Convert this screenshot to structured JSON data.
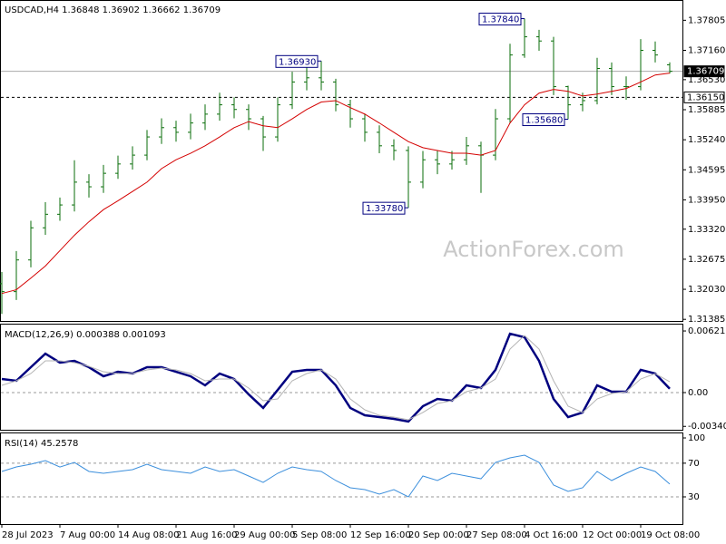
{
  "chart_data": [
    {
      "type": "ohlc",
      "title": "USDCAD,H4  1.36848 1.36902 1.36662 1.36709",
      "watermark": "ActionForex.com",
      "categories": [
        "28 Jul 2023",
        null,
        null,
        null,
        "7 Aug 00:00",
        null,
        null,
        null,
        "14 Aug 08:00",
        null,
        null,
        null,
        "21 Aug 16:00",
        null,
        null,
        null,
        "29 Aug 00:00",
        null,
        null,
        null,
        "5 Sep 08:00",
        null,
        null,
        null,
        "12 Sep 16:00",
        null,
        null,
        null,
        "20 Sep 00:00",
        null,
        null,
        null,
        "27 Sep 08:00",
        null,
        null,
        null,
        "4 Oct 16:00",
        null,
        null,
        null,
        "12 Oct 00:00",
        null,
        null,
        null,
        "19 Oct 08:00",
        null,
        null
      ],
      "open": [
        1.3215,
        1.3198,
        1.3266,
        1.3335,
        1.3364,
        1.3384,
        1.3433,
        1.3423,
        1.3452,
        1.3472,
        1.3491,
        1.353,
        1.355,
        1.354,
        1.356,
        1.3579,
        1.3599,
        1.3589,
        1.3569,
        1.353,
        1.3599,
        1.3648,
        1.3657,
        1.3648,
        1.3599,
        1.3569,
        1.354,
        1.3511,
        1.3501,
        1.3433,
        1.3481,
        1.3472,
        1.3481,
        1.3511,
        1.3491,
        1.3569,
        1.3706,
        1.3745,
        1.3736,
        1.3638,
        1.3599,
        1.3608,
        1.3677,
        1.3638,
        1.3638,
        1.3716,
        1.36848
      ],
      "high": [
        1.324,
        1.3285,
        1.335,
        1.339,
        1.34,
        1.348,
        1.345,
        1.347,
        1.349,
        1.351,
        1.3545,
        1.357,
        1.3565,
        1.358,
        1.36,
        1.3625,
        1.3615,
        1.36,
        1.3575,
        1.3615,
        1.367,
        1.3685,
        1.3693,
        1.3655,
        1.361,
        1.358,
        1.3555,
        1.3525,
        1.351,
        1.35,
        1.35,
        1.35,
        1.353,
        1.352,
        1.359,
        1.373,
        1.3784,
        1.376,
        1.3745,
        1.364,
        1.3625,
        1.37,
        1.369,
        1.366,
        1.374,
        1.3735,
        1.36902
      ],
      "low": [
        1.315,
        1.318,
        1.325,
        1.332,
        1.335,
        1.337,
        1.34,
        1.341,
        1.344,
        1.346,
        1.348,
        1.3515,
        1.352,
        1.3525,
        1.3545,
        1.3565,
        1.357,
        1.3545,
        1.35,
        1.352,
        1.359,
        1.363,
        1.363,
        1.3585,
        1.355,
        1.352,
        1.3495,
        1.348,
        1.3378,
        1.342,
        1.345,
        1.346,
        1.347,
        1.341,
        1.348,
        1.356,
        1.37,
        1.3715,
        1.362,
        1.3568,
        1.3585,
        1.36,
        1.362,
        1.361,
        1.363,
        1.369,
        1.36662
      ],
      "close": [
        1.3198,
        1.3266,
        1.3335,
        1.3364,
        1.3384,
        1.3433,
        1.3423,
        1.3452,
        1.3472,
        1.3491,
        1.353,
        1.355,
        1.354,
        1.356,
        1.3579,
        1.3599,
        1.3589,
        1.3569,
        1.353,
        1.3599,
        1.3648,
        1.3657,
        1.3648,
        1.3599,
        1.3569,
        1.354,
        1.3511,
        1.3501,
        1.3433,
        1.3481,
        1.3472,
        1.3481,
        1.3511,
        1.3491,
        1.3569,
        1.3706,
        1.3745,
        1.3736,
        1.3638,
        1.3599,
        1.3608,
        1.3677,
        1.3638,
        1.3638,
        1.3716,
        1.3706,
        1.36709
      ],
      "color": "#0a6e0a",
      "overlay": {
        "color": "#d40000",
        "values": [
          1.3194,
          1.3202,
          1.3227,
          1.3253,
          1.3286,
          1.3319,
          1.3348,
          1.3374,
          1.3393,
          1.3413,
          1.3433,
          1.3462,
          1.3481,
          1.3495,
          1.3511,
          1.353,
          1.355,
          1.3563,
          1.3554,
          1.355,
          1.3569,
          1.3589,
          1.3605,
          1.3608,
          1.3593,
          1.3579,
          1.356,
          1.354,
          1.352,
          1.3507,
          1.3501,
          1.3495,
          1.3495,
          1.3491,
          1.3501,
          1.356,
          1.3599,
          1.3624,
          1.3632,
          1.3628,
          1.3618,
          1.3622,
          1.3628,
          1.3634,
          1.3648,
          1.3663,
          1.3667
        ]
      },
      "ylim": [
        1.3135,
        1.3824
      ],
      "yticks": [
        1.37805,
        {
          "value": 1.3716,
          "label": "1.37160"
        },
        {
          "value": 1.3653,
          "label": "1.36530"
        },
        1.35885,
        {
          "value": 1.3524,
          "label": "1.35240"
        },
        1.34595,
        {
          "value": 1.3395,
          "label": "1.33950"
        },
        {
          "value": 1.3332,
          "label": "1.33320"
        },
        1.32675,
        {
          "value": 1.3203,
          "label": "1.32030"
        },
        1.31385
      ],
      "price_lines": [
        {
          "value": 1.36709,
          "label": "1.36709",
          "style": "solid"
        },
        {
          "value": 1.3615,
          "label": "1.36150",
          "style": "dashed"
        }
      ],
      "annotations": [
        {
          "value": 1.3693,
          "label": "1.36930",
          "at": "high"
        },
        {
          "value": 1.3784,
          "label": "1.37840",
          "at": "high"
        },
        {
          "value": 1.3568,
          "label": "1.35680",
          "at": "low"
        },
        {
          "value": 1.3378,
          "label": "1.33780",
          "at": "low"
        }
      ]
    },
    {
      "type": "line",
      "title": "MACD(12,26,9) 0.000388 0.001093",
      "series": [
        {
          "color": "#00007f",
          "width": 2.5,
          "values": [
            0.00137,
            0.00119,
            0.00256,
            0.00393,
            0.00302,
            0.0032,
            0.00256,
            0.00165,
            0.0021,
            0.00192,
            0.00256,
            0.00256,
            0.0021,
            0.00165,
            0.00073,
            0.00192,
            0.00137,
            -0.00018,
            -0.00155,
            0.00027,
            0.0021,
            0.00229,
            0.00229,
            0.00073,
            -0.00155,
            -0.00229,
            -0.00247,
            -0.00265,
            -0.00292,
            -0.00137,
            -0.00064,
            -0.00082,
            0.00073,
            0.00046,
            0.00229,
            0.00594,
            0.00558,
            0.0032,
            -0.00064,
            -0.00247,
            -0.00201,
            0.00073,
            9e-05,
            9e-05,
            0.00229,
            0.00192,
            0.000388
          ]
        },
        {
          "color": "#b4b4b4",
          "width": 1,
          "values": [
            0.00073,
            0.00119,
            0.00192,
            0.0032,
            0.0032,
            0.00302,
            0.00265,
            0.0021,
            0.00192,
            0.00192,
            0.00229,
            0.00247,
            0.00229,
            0.00192,
            0.00119,
            0.00137,
            0.00137,
            0.00046,
            -0.00082,
            -0.00064,
            0.00119,
            0.00192,
            0.00229,
            0.00137,
            -0.00064,
            -0.00174,
            -0.00229,
            -0.00247,
            -0.00274,
            -0.00201,
            -0.0011,
            -0.00082,
            9e-05,
            0.00046,
            0.00137,
            0.00439,
            0.00576,
            0.00439,
            0.00119,
            -0.00137,
            -0.00201,
            -0.00064,
            -9e-05,
            9e-05,
            0.00137,
            0.00192,
            0.001093
          ]
        }
      ],
      "ylim": [
        -0.00375,
        0.00686
      ],
      "yticks": [
        0.006216,
        {
          "value": 0,
          "label": "0.00"
        },
        -0.003407
      ],
      "levels": [
        0
      ]
    },
    {
      "type": "line",
      "title": "RSI(14) 45.2578",
      "series": [
        {
          "color": "#3c8fdc",
          "width": 1,
          "values": [
            60.2,
            65.5,
            68.8,
            73.1,
            65.5,
            70.9,
            60.2,
            58.0,
            60.2,
            62.3,
            68.8,
            62.3,
            60.2,
            58.0,
            65.5,
            60.2,
            62.3,
            54.8,
            47.2,
            58.0,
            65.5,
            62.3,
            60.2,
            49.4,
            40.8,
            38.6,
            33.2,
            38.6,
            30.0,
            54.8,
            49.4,
            58.0,
            54.8,
            51.5,
            70.9,
            76.3,
            79.5,
            70.9,
            44.0,
            36.5,
            40.8,
            60.2,
            49.4,
            58.0,
            65.5,
            60.2,
            45.2578
          ]
        }
      ],
      "ylim": [
        -2.3,
        105.4
      ],
      "yticks": [
        100,
        70,
        30
      ],
      "levels": [
        70,
        30
      ]
    }
  ]
}
